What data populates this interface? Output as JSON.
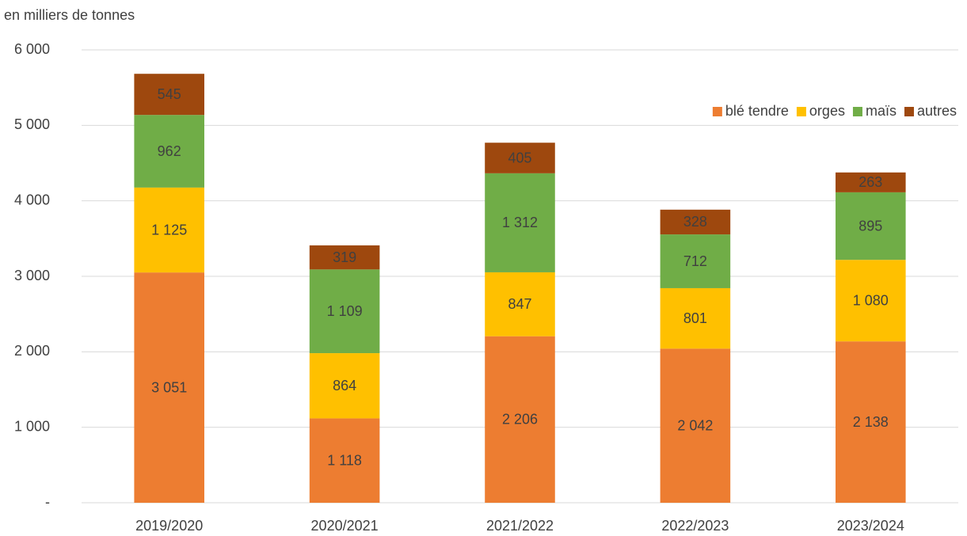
{
  "chart_data": {
    "type": "stacked_bar",
    "y_axis_label": "en milliers de tonnes",
    "categories": [
      "2019/2020",
      "2020/2021",
      "2021/2022",
      "2022/2023",
      "2023/2024"
    ],
    "series": [
      {
        "name": "blé tendre",
        "color": "#ED7D31",
        "values": [
          3051,
          1118,
          2206,
          2042,
          2138
        ],
        "value_labels": [
          "3 051",
          "1 118",
          "2 206",
          "2 042",
          "2 138"
        ]
      },
      {
        "name": "orges",
        "color": "#FFC000",
        "values": [
          1125,
          864,
          847,
          801,
          1080
        ],
        "value_labels": [
          "1 125",
          "864",
          "847",
          "801",
          "1 080"
        ]
      },
      {
        "name": "maïs",
        "color": "#70AD47",
        "values": [
          962,
          1109,
          1312,
          712,
          895
        ],
        "value_labels": [
          "962",
          "1 109",
          "1 312",
          "712",
          "895"
        ]
      },
      {
        "name": "autres",
        "color": "#9E480E",
        "values": [
          545,
          319,
          405,
          328,
          263
        ],
        "value_labels": [
          "545",
          "319",
          "405",
          "328",
          "263"
        ]
      }
    ],
    "ylim": [
      0,
      6000
    ],
    "yticks": [
      {
        "value": 0,
        "label": "-"
      },
      {
        "value": 1000,
        "label": "1 000"
      },
      {
        "value": 2000,
        "label": "2 000"
      },
      {
        "value": 3000,
        "label": "3 000"
      },
      {
        "value": 4000,
        "label": "4 000"
      },
      {
        "value": 5000,
        "label": "5 000"
      },
      {
        "value": 6000,
        "label": "6 000"
      }
    ],
    "grid": true,
    "legend": "top-right"
  }
}
